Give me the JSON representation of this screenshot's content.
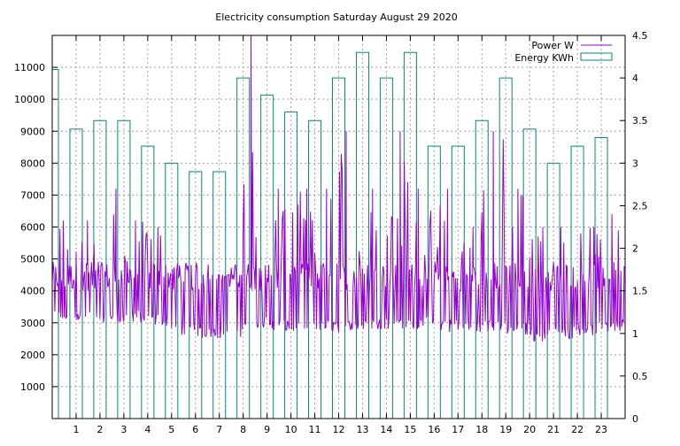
{
  "chart_data": {
    "type": "line",
    "title": "Electricity consumption Saturday August 29 2020",
    "xlabel": "",
    "ylabel": "",
    "y2label": "",
    "xlim": [
      0,
      24
    ],
    "ylim": [
      0,
      12000
    ],
    "y2lim": [
      0,
      4.5
    ],
    "grid": true,
    "legend_position": "top-right",
    "x_ticks": [
      "1",
      "2",
      "3",
      "4",
      "5",
      "6",
      "7",
      "8",
      "9",
      "10",
      "11",
      "12",
      "13",
      "14",
      "15",
      "16",
      "17",
      "18",
      "19",
      "20",
      "21",
      "22",
      "23"
    ],
    "y_ticks": [
      "1000",
      "2000",
      "3000",
      "4000",
      "5000",
      "6000",
      "7000",
      "8000",
      "9000",
      "10000",
      "11000"
    ],
    "y2_ticks": [
      "0",
      "0.5",
      "1",
      "1.5",
      "2",
      "2.5",
      "3",
      "3.5",
      "4",
      "4.5"
    ],
    "series": [
      {
        "name": "Power W",
        "axis": "y1",
        "style": "line",
        "color": "#9400d3",
        "hourly_baseline": [
          3000,
          3000,
          3000,
          3000,
          2900,
          2600,
          2500,
          2500,
          2800,
          2700,
          2700,
          2700,
          2700,
          2800,
          2800,
          2800,
          2700,
          2700,
          2700,
          2600,
          2400,
          2500,
          2600,
          2700
        ],
        "hourly_peak": [
          6200,
          6200,
          7200,
          6200,
          6000,
          4800,
          4500,
          4500,
          12000,
          7200,
          7200,
          7200,
          9000,
          7200,
          9000,
          7200,
          7200,
          6000,
          9000,
          7200,
          6000,
          6000,
          6000,
          6400
        ]
      },
      {
        "name": "Energy KWh",
        "axis": "y2",
        "style": "bars",
        "color": "#008b74",
        "x": [
          0,
          1,
          2,
          3,
          4,
          5,
          6,
          7,
          8,
          9,
          10,
          11,
          12,
          13,
          14,
          15,
          16,
          17,
          18,
          19,
          20,
          21,
          22,
          23
        ],
        "values": [
          4.1,
          3.4,
          3.5,
          3.5,
          3.2,
          3.0,
          2.9,
          2.9,
          4.0,
          3.8,
          3.6,
          3.5,
          4.0,
          4.3,
          4.0,
          4.3,
          3.2,
          3.2,
          3.5,
          4.0,
          3.4,
          3.0,
          3.2,
          3.3
        ]
      }
    ]
  }
}
